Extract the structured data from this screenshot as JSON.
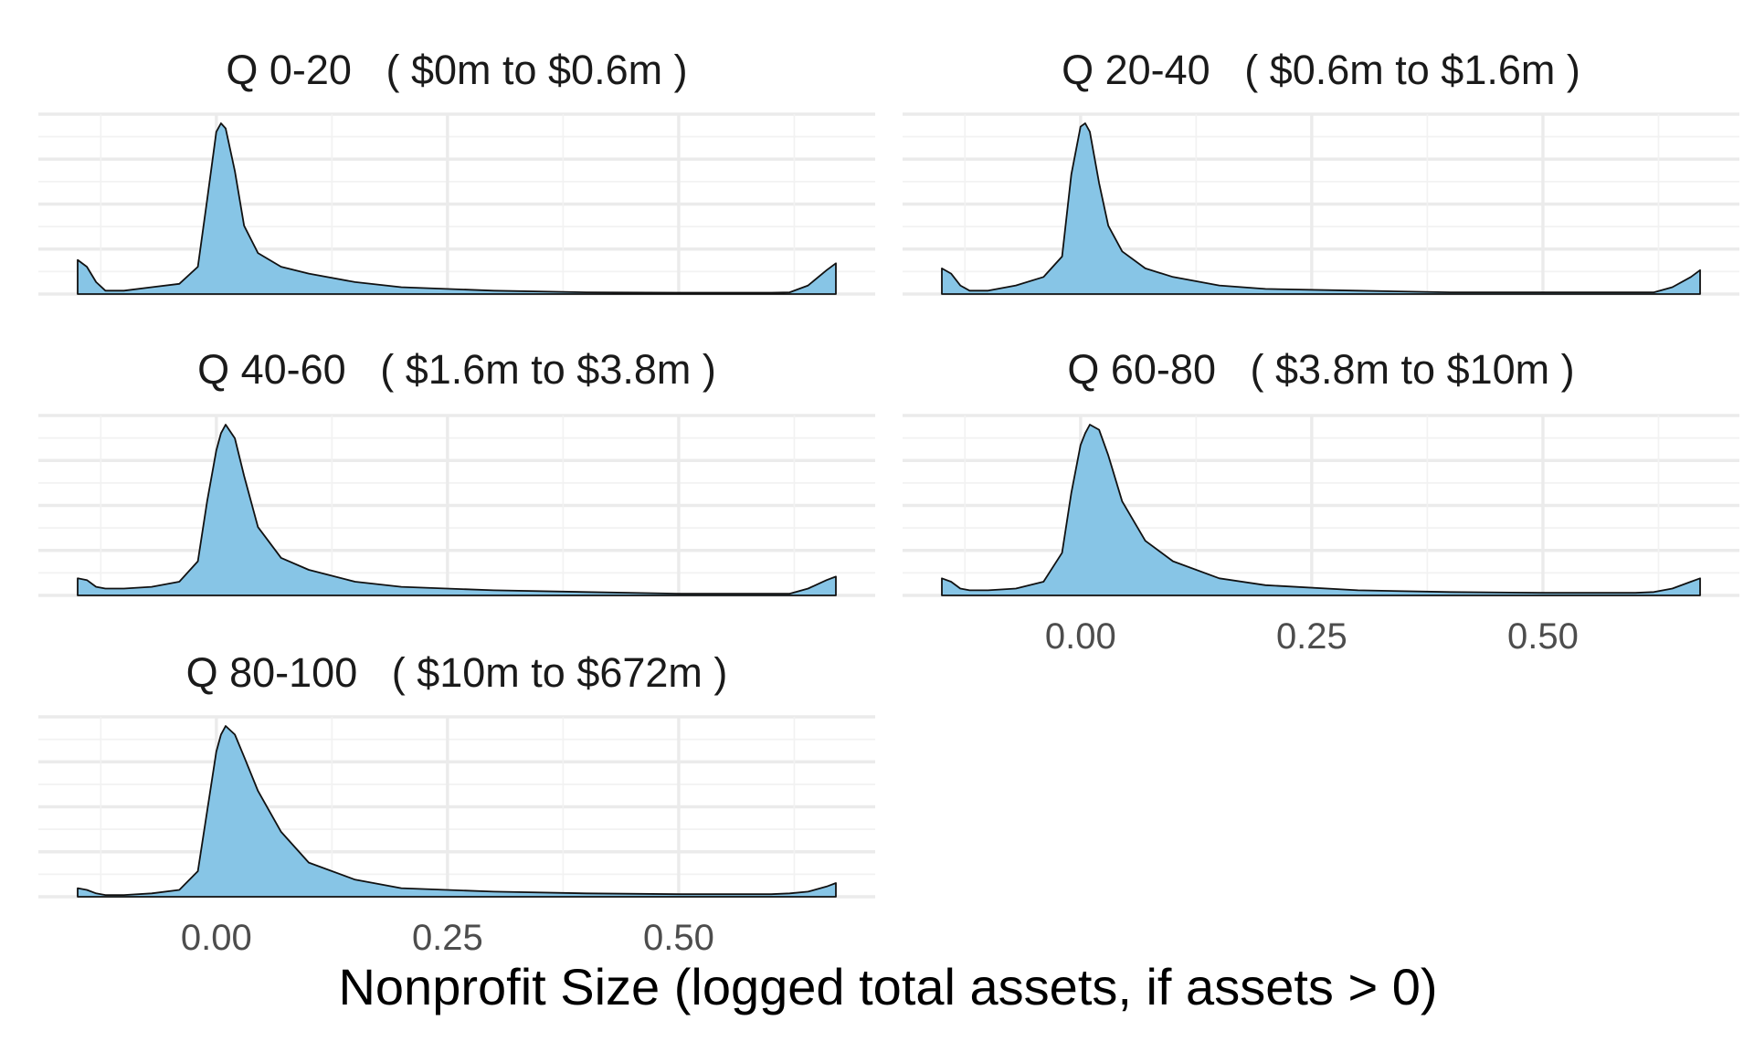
{
  "chart_data": {
    "type": "area",
    "layout": "facets, 2 columns",
    "xlabel": "Nonprofit Size (logged total assets, if assets > 0)",
    "ylabel": "",
    "xlim": [
      -0.15,
      0.67
    ],
    "x_ticks": [
      0.0,
      0.25,
      0.5
    ],
    "x_tick_labels": [
      "0.00",
      "0.25",
      "0.50"
    ],
    "y_ticks_shown": false,
    "grid": true,
    "fill_color": "#87c5e6",
    "line_color": "#111111",
    "panels": [
      {
        "title": "Q 0-20   ( $0m to $0.6m )",
        "x": [
          -0.15,
          -0.14,
          -0.13,
          -0.12,
          -0.1,
          -0.07,
          -0.04,
          -0.02,
          -0.01,
          0.0,
          0.005,
          0.01,
          0.02,
          0.03,
          0.045,
          0.07,
          0.1,
          0.15,
          0.2,
          0.3,
          0.4,
          0.5,
          0.6,
          0.62,
          0.64,
          0.66,
          0.67
        ],
        "y": [
          0.2,
          0.16,
          0.07,
          0.02,
          0.02,
          0.04,
          0.06,
          0.16,
          0.55,
          0.95,
          1.0,
          0.97,
          0.72,
          0.4,
          0.24,
          0.16,
          0.12,
          0.07,
          0.04,
          0.02,
          0.01,
          0.008,
          0.008,
          0.01,
          0.05,
          0.14,
          0.18
        ]
      },
      {
        "title": "Q 20-40   ( $0.6m to $1.6m )",
        "x": [
          -0.15,
          -0.14,
          -0.13,
          -0.12,
          -0.1,
          -0.07,
          -0.04,
          -0.02,
          -0.01,
          0.0,
          0.005,
          0.01,
          0.02,
          0.03,
          0.045,
          0.07,
          0.1,
          0.15,
          0.2,
          0.3,
          0.4,
          0.5,
          0.6,
          0.62,
          0.64,
          0.66,
          0.67
        ],
        "y": [
          0.15,
          0.12,
          0.05,
          0.02,
          0.02,
          0.05,
          0.1,
          0.22,
          0.7,
          0.98,
          1.0,
          0.95,
          0.65,
          0.4,
          0.25,
          0.15,
          0.1,
          0.05,
          0.03,
          0.02,
          0.01,
          0.01,
          0.01,
          0.01,
          0.04,
          0.1,
          0.14
        ]
      },
      {
        "title": "Q 40-60   ( $1.6m to $3.8m )",
        "x": [
          -0.15,
          -0.14,
          -0.13,
          -0.12,
          -0.1,
          -0.07,
          -0.04,
          -0.02,
          -0.01,
          0.0,
          0.005,
          0.01,
          0.02,
          0.03,
          0.045,
          0.07,
          0.1,
          0.15,
          0.2,
          0.3,
          0.4,
          0.5,
          0.6,
          0.62,
          0.64,
          0.66,
          0.67
        ],
        "y": [
          0.1,
          0.09,
          0.05,
          0.04,
          0.04,
          0.05,
          0.08,
          0.2,
          0.55,
          0.85,
          0.95,
          1.0,
          0.92,
          0.7,
          0.4,
          0.22,
          0.15,
          0.08,
          0.05,
          0.03,
          0.02,
          0.01,
          0.01,
          0.01,
          0.04,
          0.09,
          0.11
        ]
      },
      {
        "title": "Q 60-80   ( $3.8m to $10m )",
        "x": [
          -0.15,
          -0.14,
          -0.13,
          -0.12,
          -0.1,
          -0.07,
          -0.04,
          -0.02,
          -0.01,
          0.0,
          0.005,
          0.01,
          0.02,
          0.03,
          0.045,
          0.07,
          0.1,
          0.15,
          0.2,
          0.3,
          0.4,
          0.5,
          0.6,
          0.62,
          0.64,
          0.66,
          0.67
        ],
        "y": [
          0.1,
          0.08,
          0.04,
          0.03,
          0.03,
          0.04,
          0.08,
          0.25,
          0.6,
          0.88,
          0.95,
          1.0,
          0.97,
          0.82,
          0.55,
          0.32,
          0.2,
          0.1,
          0.06,
          0.03,
          0.02,
          0.015,
          0.015,
          0.02,
          0.04,
          0.08,
          0.1
        ]
      },
      {
        "title": "Q 80-100   ( $10m to $672m )",
        "x": [
          -0.15,
          -0.14,
          -0.13,
          -0.12,
          -0.1,
          -0.07,
          -0.04,
          -0.02,
          -0.01,
          0.0,
          0.005,
          0.01,
          0.02,
          0.03,
          0.045,
          0.07,
          0.1,
          0.15,
          0.2,
          0.3,
          0.4,
          0.5,
          0.6,
          0.62,
          0.64,
          0.66,
          0.67
        ],
        "y": [
          0.05,
          0.04,
          0.02,
          0.01,
          0.01,
          0.02,
          0.04,
          0.15,
          0.5,
          0.85,
          0.95,
          1.0,
          0.95,
          0.82,
          0.62,
          0.38,
          0.2,
          0.1,
          0.05,
          0.03,
          0.02,
          0.015,
          0.015,
          0.02,
          0.03,
          0.06,
          0.08
        ]
      }
    ]
  }
}
